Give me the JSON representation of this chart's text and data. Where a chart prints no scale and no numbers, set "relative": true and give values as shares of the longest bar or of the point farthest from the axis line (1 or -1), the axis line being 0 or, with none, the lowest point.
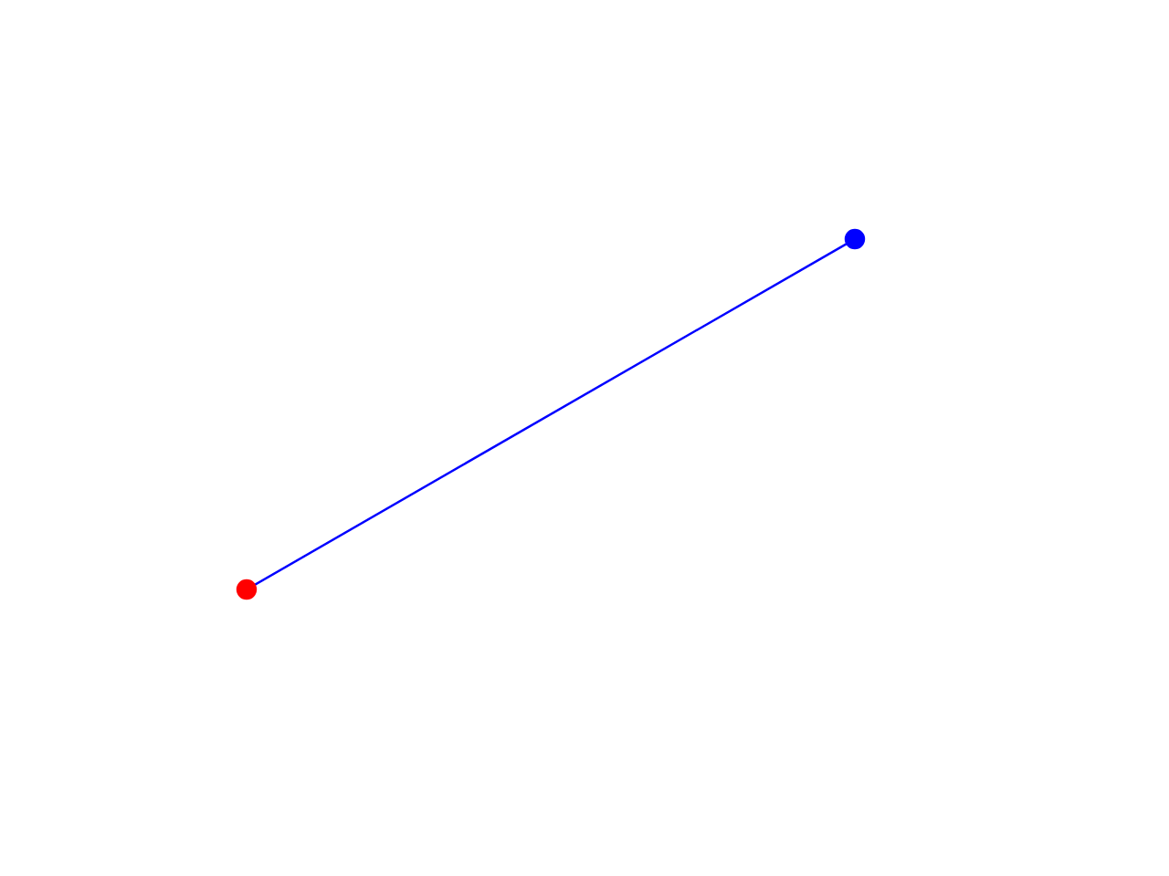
{
  "chart_data": {
    "type": "line",
    "relative": true,
    "categories": [
      null,
      null
    ],
    "marker": "circle",
    "line_style": "solid",
    "series": [
      {
        "color": "#0000ff",
        "colors": [
          "#ff0000",
          "#0000ff"
        ],
        "values": [
          0,
          1
        ]
      }
    ]
  }
}
